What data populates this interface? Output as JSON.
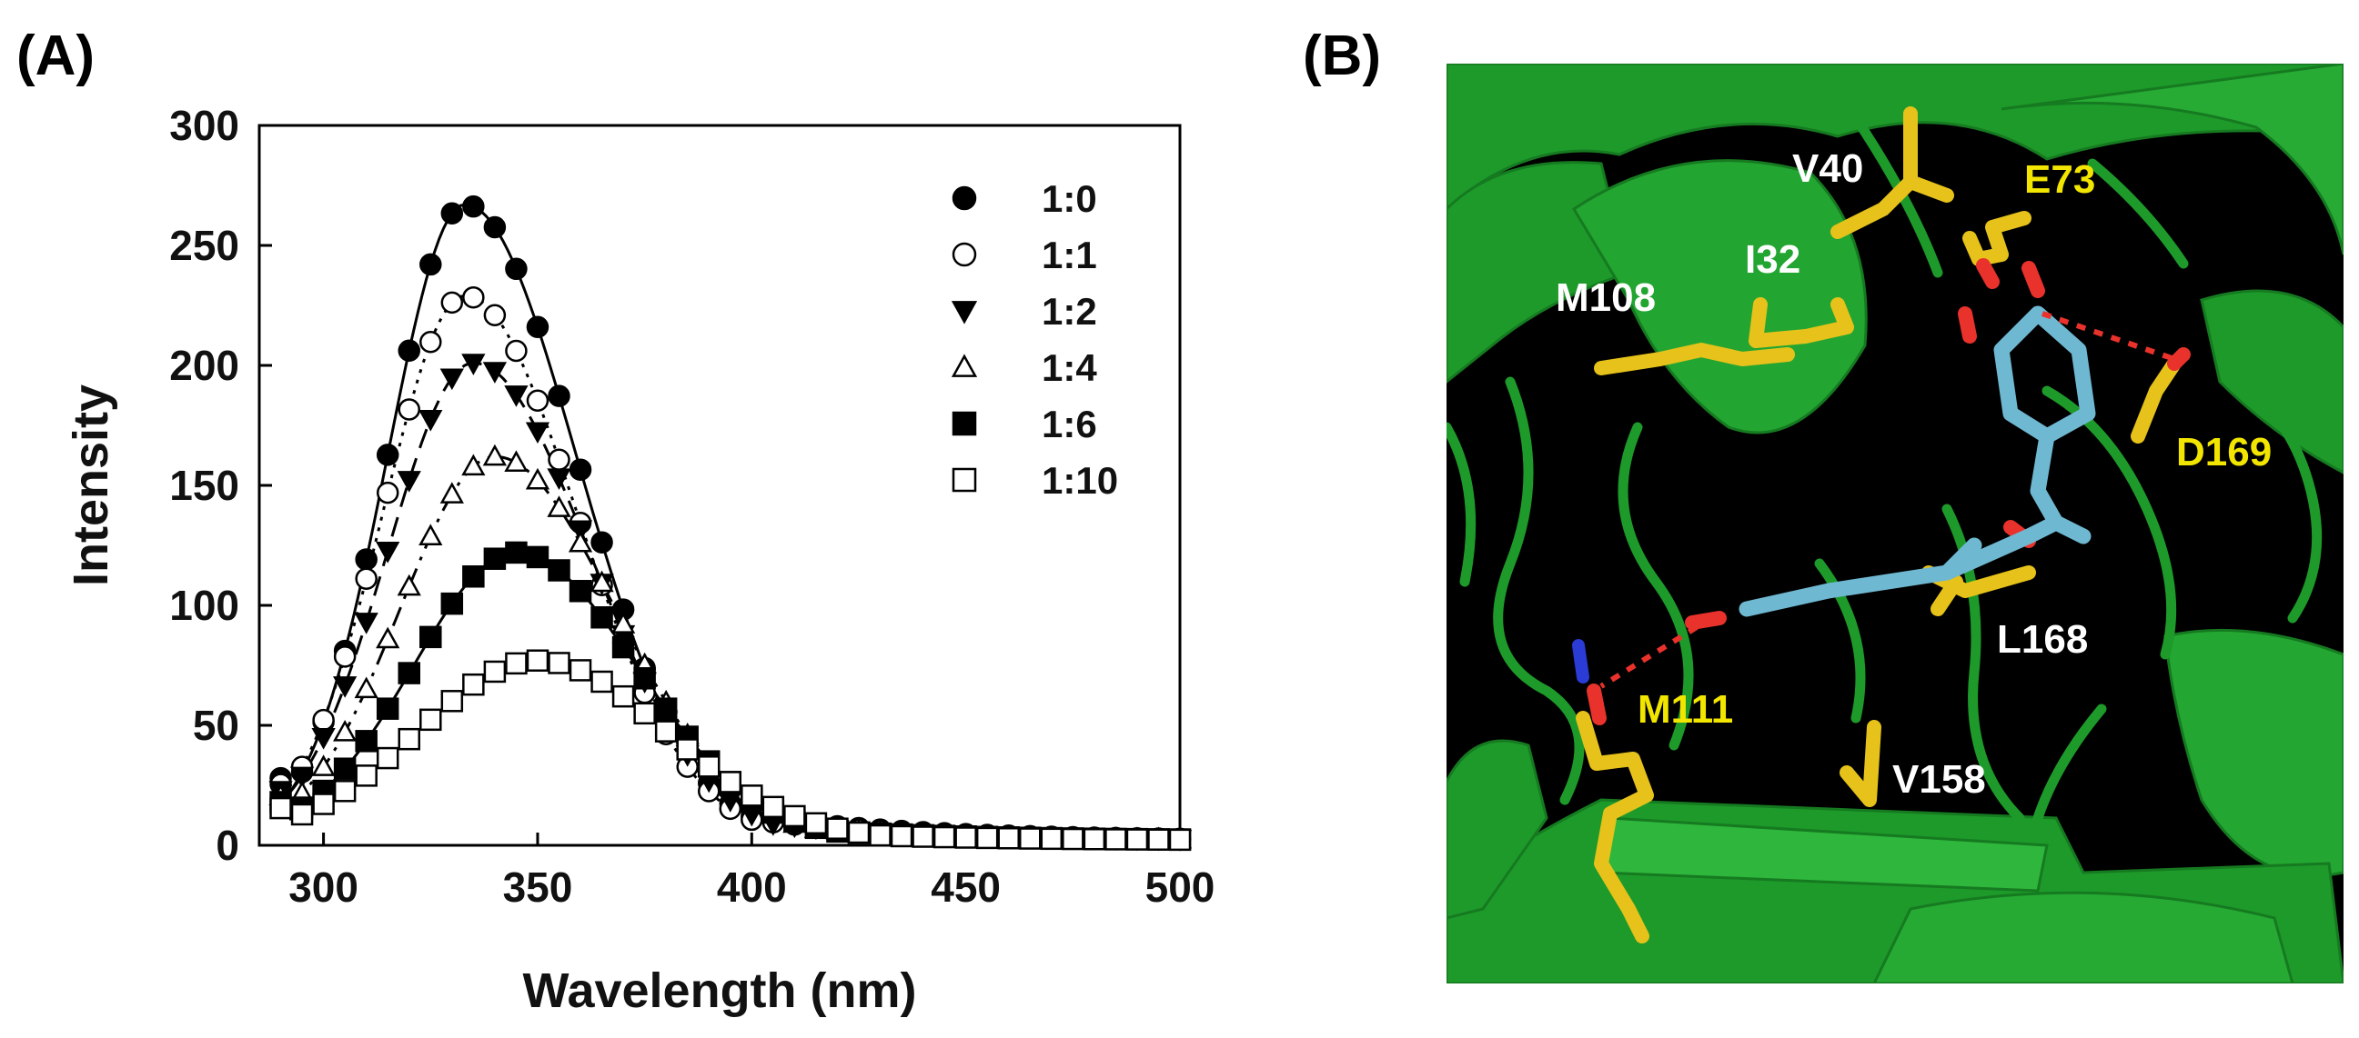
{
  "panels": {
    "a_label": "(A)",
    "b_label": "(B)"
  },
  "colors": {
    "structure_bg": "#000000",
    "ribbon": "#1e9a2a",
    "ribbon_light": "#2fb63c",
    "residue_yellow": "#e6c21a",
    "ligand_cyan": "#6fb8d2",
    "oxygen_red": "#e8322b",
    "nitrogen_blue": "#2a3bd6",
    "hbond": "#e8322b",
    "label_white": "#ffffff",
    "label_yellow": "#f2e600"
  },
  "chart_data": {
    "type": "scatter",
    "title": "",
    "xlabel": "Wavelength (nm)",
    "ylabel": "Intensity",
    "xlim": [
      285,
      500
    ],
    "ylim": [
      0,
      300
    ],
    "xticks": [
      "300",
      "350",
      "400",
      "450",
      "500"
    ],
    "yticks": [
      "0",
      "50",
      "100",
      "150",
      "200",
      "250",
      "300"
    ],
    "legend_position": "top-right",
    "series": [
      {
        "name": "1:0",
        "marker": "filled-circle",
        "line": "solid",
        "peak_x": 333,
        "peak_y": 267,
        "sigma_left": 18,
        "sigma_right": 26,
        "base": 2
      },
      {
        "name": "1:1",
        "marker": "open-circle",
        "line": "dotted",
        "peak_x": 333,
        "peak_y": 229,
        "sigma_left": 19,
        "sigma_right": 26,
        "base": 2
      },
      {
        "name": "1:2",
        "marker": "filled-triangle-down",
        "line": "dashed",
        "peak_x": 335,
        "peak_y": 201,
        "sigma_left": 20,
        "sigma_right": 27,
        "base": 2
      },
      {
        "name": "1:4",
        "marker": "open-triangle-up",
        "line": "dash-dot",
        "peak_x": 340,
        "peak_y": 162,
        "sigma_left": 22,
        "sigma_right": 28,
        "base": 2
      },
      {
        "name": "1:6",
        "marker": "filled-square",
        "line": "solid",
        "peak_x": 345,
        "peak_y": 122,
        "sigma_left": 24,
        "sigma_right": 28,
        "base": 2
      },
      {
        "name": "1:10",
        "marker": "open-square",
        "line": "solid",
        "peak_x": 350,
        "peak_y": 77,
        "sigma_left": 28,
        "sigma_right": 30,
        "base": 2
      }
    ]
  },
  "structure": {
    "residue_labels": [
      {
        "id": "V40",
        "text": "V40",
        "color": "white"
      },
      {
        "id": "E73",
        "text": "E73",
        "color": "yellow"
      },
      {
        "id": "I32",
        "text": "I32",
        "color": "white"
      },
      {
        "id": "M108",
        "text": "M108",
        "color": "white"
      },
      {
        "id": "D169",
        "text": "D169",
        "color": "yellow"
      },
      {
        "id": "L168",
        "text": "L168",
        "color": "white"
      },
      {
        "id": "M111",
        "text": "M111",
        "color": "yellow"
      },
      {
        "id": "V158",
        "text": "V158",
        "color": "white"
      }
    ]
  }
}
